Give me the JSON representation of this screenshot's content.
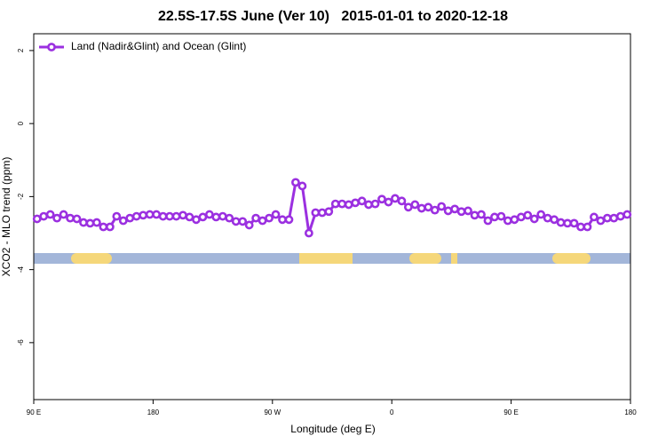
{
  "chart_data": {
    "type": "line",
    "title": "22.5S-17.5S June (Ver 10)   2015-01-01 to 2020-12-18",
    "xlabel": "Longitude (deg E)",
    "ylabel": "XCO2 - MLO trend (ppm)",
    "xlim": [
      90,
      540
    ],
    "ylim": [
      -7.56,
      2.46
    ],
    "xticks": [
      {
        "value": 90,
        "label": "90 E"
      },
      180,
      {
        "value": 270,
        "label": "90 W"
      },
      {
        "value": 360,
        "label": "0"
      },
      {
        "value": 450,
        "label": "90 E"
      },
      {
        "value": 540,
        "label": "180"
      }
    ],
    "yticks": [
      -6,
      -4,
      -2,
      0,
      2
    ],
    "legend": "top-left",
    "x": [
      92.5,
      97.5,
      102.5,
      107.5,
      112.5,
      117.5,
      122.5,
      127.5,
      132.5,
      137.5,
      142.5,
      147.5,
      152.5,
      157.5,
      162.5,
      167.5,
      172.5,
      177.5,
      182.5,
      187.5,
      192.5,
      197.5,
      202.5,
      207.5,
      212.5,
      217.5,
      222.5,
      227.5,
      232.5,
      237.5,
      242.5,
      247.5,
      252.5,
      257.5,
      262.5,
      267.5,
      272.5,
      277.5,
      282.5,
      287.5,
      292.5,
      297.5,
      302.5,
      307.5,
      312.5,
      317.5,
      322.5,
      327.5,
      332.5,
      337.5,
      342.5,
      347.5,
      352.5,
      357.5,
      362.5,
      367.5,
      372.5,
      377.5,
      382.5,
      387.5,
      392.5,
      397.5,
      402.5,
      407.5,
      412.5,
      417.5,
      422.5,
      427.5,
      432.5,
      437.5,
      442.5,
      447.5,
      452.5,
      457.5,
      462.5,
      467.5,
      472.5,
      477.5,
      482.5,
      487.5,
      492.5,
      497.5,
      502.5,
      507.5,
      512.5,
      517.5,
      522.5,
      527.5,
      532.5,
      537.5
    ],
    "series": [
      {
        "name": "Land (Nadir&Glint) and Ocean (Glint)",
        "color": "#9b30e0",
        "values": [
          -2.61,
          -2.54,
          -2.49,
          -2.59,
          -2.49,
          -2.59,
          -2.61,
          -2.71,
          -2.73,
          -2.71,
          -2.83,
          -2.83,
          -2.54,
          -2.66,
          -2.59,
          -2.54,
          -2.51,
          -2.49,
          -2.49,
          -2.54,
          -2.54,
          -2.54,
          -2.51,
          -2.56,
          -2.63,
          -2.56,
          -2.49,
          -2.56,
          -2.54,
          -2.59,
          -2.68,
          -2.68,
          -2.78,
          -2.59,
          -2.66,
          -2.59,
          -2.49,
          -2.63,
          -2.63,
          -1.61,
          -1.71,
          -3.0,
          -2.44,
          -2.44,
          -2.41,
          -2.2,
          -2.2,
          -2.22,
          -2.17,
          -2.12,
          -2.22,
          -2.2,
          -2.07,
          -2.15,
          -2.05,
          -2.12,
          -2.29,
          -2.22,
          -2.32,
          -2.29,
          -2.37,
          -2.27,
          -2.39,
          -2.34,
          -2.41,
          -2.39,
          -2.51,
          -2.49,
          -2.66,
          -2.56,
          -2.54,
          -2.66,
          -2.63,
          -2.56,
          -2.51,
          -2.61,
          -2.49,
          -2.59,
          -2.63,
          -2.71,
          -2.73,
          -2.73,
          -2.83,
          -2.83,
          -2.56,
          -2.66,
          -2.59,
          -2.59,
          -2.54,
          -2.49
        ]
      }
    ]
  }
}
